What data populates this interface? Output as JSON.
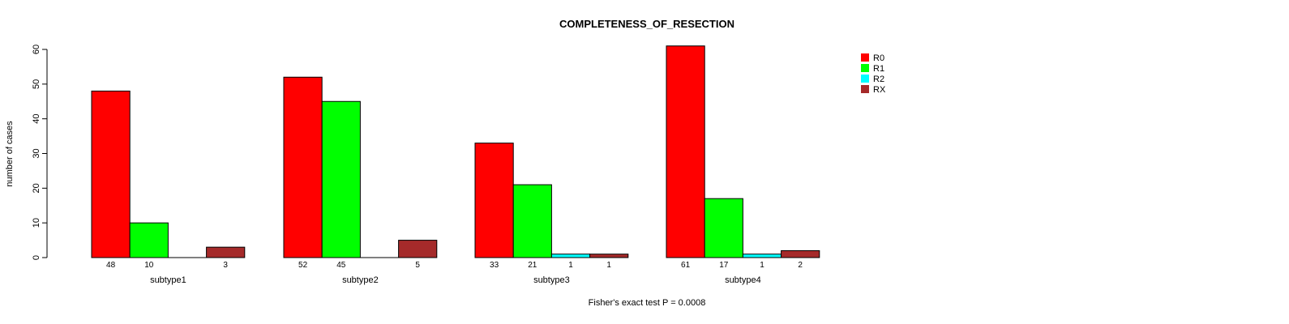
{
  "chart_data": {
    "type": "bar",
    "title": "COMPLETENESS_OF_RESECTION",
    "ylabel": "number of cases",
    "xlabel": "",
    "ylim": [
      0,
      60
    ],
    "yticks": [
      0,
      10,
      20,
      30,
      40,
      50,
      60
    ],
    "grid": false,
    "legend_position": "top-right",
    "categories": [
      "subtype1",
      "subtype2",
      "subtype3",
      "subtype4"
    ],
    "series": [
      {
        "name": "R0",
        "color": "#ff0000",
        "values": [
          48,
          52,
          33,
          61
        ]
      },
      {
        "name": "R1",
        "color": "#00ff00",
        "values": [
          10,
          45,
          21,
          17
        ]
      },
      {
        "name": "R2",
        "color": "#00ffff",
        "values": [
          0,
          0,
          1,
          1
        ]
      },
      {
        "name": "RX",
        "color": "#a52a2a",
        "values": [
          3,
          5,
          1,
          2
        ]
      }
    ],
    "annotation": "Fisher's exact test P = 0.0008"
  }
}
